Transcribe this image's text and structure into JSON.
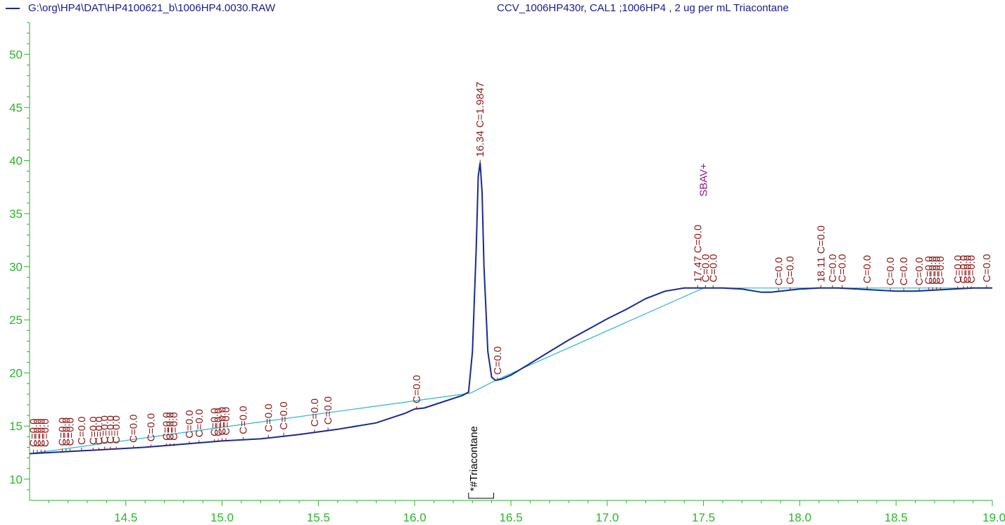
{
  "header": {
    "file_path": "G:\\org\\HP4\\DAT\\HP4100621_b\\1006HP4.0030.RAW",
    "sample": "CCV_1006HP430r, CAL1 ;1006HP4 , 2 ug per mL Triacontane"
  },
  "colors": {
    "axis_ticks": "#2bb52b",
    "trace": "#1a2a8c",
    "baseline": "#2bb5c8",
    "peak_label": "#8b1a1a",
    "sbav_label": "#8b1a8b",
    "compound_label": "#000000",
    "legend_line": "#1a2a8c"
  },
  "chart_data": {
    "type": "line",
    "title": "",
    "xlabel": "",
    "ylabel": "",
    "xlim": [
      14.0,
      19.0
    ],
    "ylim": [
      8,
      53
    ],
    "x_ticks": [
      14.5,
      15.0,
      15.5,
      16.0,
      16.5,
      17.0,
      17.5,
      18.0,
      18.5,
      19.0
    ],
    "x_tick_labels": [
      "14.5",
      "15.0",
      "15.5",
      "16.0",
      "16.5",
      "17.0",
      "17.5",
      "18.0",
      "18.5",
      "19.0"
    ],
    "y_ticks": [
      10,
      15,
      20,
      25,
      30,
      35,
      40,
      45,
      50
    ],
    "y_tick_labels": [
      "10",
      "15",
      "20",
      "25",
      "30",
      "35",
      "40",
      "45",
      "50"
    ],
    "series": [
      {
        "x": [
          14.0,
          14.2,
          14.4,
          14.6,
          14.8,
          15.0,
          15.2,
          15.4,
          15.6,
          15.8,
          15.95,
          16.0,
          16.05,
          16.15,
          16.25,
          16.28,
          16.3,
          16.32,
          16.33,
          16.34,
          16.35,
          16.36,
          16.38,
          16.4,
          16.42,
          16.45,
          16.5,
          16.6,
          16.7,
          16.8,
          16.9,
          17.0,
          17.1,
          17.2,
          17.3,
          17.4,
          17.5,
          17.6,
          17.7,
          17.8,
          17.85,
          17.9,
          18.0,
          18.1,
          18.2,
          18.3,
          18.4,
          18.5,
          18.6,
          18.7,
          18.8,
          18.9,
          19.0
        ],
        "values": [
          12.4,
          12.6,
          12.8,
          13.0,
          13.3,
          13.6,
          13.8,
          14.2,
          14.7,
          15.3,
          16.2,
          16.6,
          16.7,
          17.3,
          17.9,
          18.2,
          22.0,
          32.0,
          38.5,
          39.8,
          37.0,
          30.0,
          22.0,
          19.6,
          19.3,
          19.4,
          19.8,
          20.9,
          22.0,
          23.1,
          24.1,
          25.1,
          26.0,
          27.0,
          27.7,
          28.0,
          28.0,
          28.0,
          27.9,
          27.6,
          27.6,
          27.7,
          27.9,
          28.0,
          28.0,
          27.9,
          27.8,
          27.7,
          27.7,
          27.8,
          27.9,
          28.0,
          28.0
        ]
      },
      {
        "x": [
          14.0,
          16.29,
          16.42,
          17.5,
          19.0
        ],
        "values": [
          12.4,
          18.1,
          19.3,
          28.0,
          28.0
        ]
      }
    ],
    "peak_annotations": [
      {
        "x": 14.02,
        "y": 12.5,
        "text": "C=0.0"
      },
      {
        "x": 14.04,
        "y": 12.5,
        "text": "C=0.0"
      },
      {
        "x": 14.06,
        "y": 12.5,
        "text": "C=0.0"
      },
      {
        "x": 14.08,
        "y": 12.5,
        "text": "C=0.0"
      },
      {
        "x": 14.17,
        "y": 12.6,
        "text": "C=0.0"
      },
      {
        "x": 14.19,
        "y": 12.6,
        "text": "C=0.0"
      },
      {
        "x": 14.21,
        "y": 12.6,
        "text": "C=0.0"
      },
      {
        "x": 14.27,
        "y": 12.7,
        "text": "C=0.0"
      },
      {
        "x": 14.33,
        "y": 12.7,
        "text": "C=0.0"
      },
      {
        "x": 14.36,
        "y": 12.7,
        "text": "C=0.0"
      },
      {
        "x": 14.39,
        "y": 12.8,
        "text": "C=0.0"
      },
      {
        "x": 14.42,
        "y": 12.8,
        "text": "C=0.0"
      },
      {
        "x": 14.45,
        "y": 12.8,
        "text": "C=0.0"
      },
      {
        "x": 14.54,
        "y": 12.9,
        "text": "C=0.0"
      },
      {
        "x": 14.63,
        "y": 13.0,
        "text": "C=0.0"
      },
      {
        "x": 14.71,
        "y": 13.1,
        "text": "C=0.0"
      },
      {
        "x": 14.73,
        "y": 13.1,
        "text": "C=0.0"
      },
      {
        "x": 14.75,
        "y": 13.1,
        "text": "C=0.0"
      },
      {
        "x": 14.83,
        "y": 13.3,
        "text": "C=0.0"
      },
      {
        "x": 14.88,
        "y": 13.4,
        "text": "C=0.0"
      },
      {
        "x": 14.96,
        "y": 13.5,
        "text": "C=0.0"
      },
      {
        "x": 14.98,
        "y": 13.5,
        "text": "C=0.0"
      },
      {
        "x": 15.0,
        "y": 13.6,
        "text": "C=0.0"
      },
      {
        "x": 15.02,
        "y": 13.6,
        "text": "C=0.0"
      },
      {
        "x": 15.11,
        "y": 13.7,
        "text": "C=0.0"
      },
      {
        "x": 15.24,
        "y": 13.9,
        "text": "C=0.0"
      },
      {
        "x": 15.32,
        "y": 14.1,
        "text": "C=0.0"
      },
      {
        "x": 15.48,
        "y": 14.4,
        "text": "C=0.0"
      },
      {
        "x": 15.55,
        "y": 14.6,
        "text": "C=0.0"
      },
      {
        "x": 16.01,
        "y": 16.6,
        "text": "C=0.0"
      },
      {
        "x": 16.34,
        "y": 39.8,
        "text": "16.34  C=1.9847"
      },
      {
        "x": 16.43,
        "y": 19.3,
        "text": "C=0.0"
      },
      {
        "x": 17.47,
        "y": 28.0,
        "text": "17.47  C=0.0"
      },
      {
        "x": 17.51,
        "y": 28.0,
        "text": "C=0.0"
      },
      {
        "x": 17.55,
        "y": 28.0,
        "text": "C=0.0"
      },
      {
        "x": 17.89,
        "y": 27.7,
        "text": "C=0.0"
      },
      {
        "x": 17.95,
        "y": 27.8,
        "text": "C=0.0"
      },
      {
        "x": 18.11,
        "y": 28.0,
        "text": "18.11  C=0.0"
      },
      {
        "x": 18.17,
        "y": 28.0,
        "text": "C=0.0"
      },
      {
        "x": 18.22,
        "y": 28.0,
        "text": "C=0.0"
      },
      {
        "x": 18.35,
        "y": 27.9,
        "text": "C=0.0"
      },
      {
        "x": 18.47,
        "y": 27.7,
        "text": "C=0.0"
      },
      {
        "x": 18.54,
        "y": 27.7,
        "text": "C=0.0"
      },
      {
        "x": 18.62,
        "y": 27.7,
        "text": "C=0.0"
      },
      {
        "x": 18.67,
        "y": 27.8,
        "text": "C=0.0"
      },
      {
        "x": 18.69,
        "y": 27.8,
        "text": "C=0.0"
      },
      {
        "x": 18.71,
        "y": 27.8,
        "text": "C=0.0"
      },
      {
        "x": 18.73,
        "y": 27.8,
        "text": "C=0.0"
      },
      {
        "x": 18.82,
        "y": 27.9,
        "text": "C=0.0"
      },
      {
        "x": 18.85,
        "y": 27.9,
        "text": "C=0.0"
      },
      {
        "x": 18.87,
        "y": 27.9,
        "text": "C=0.0"
      },
      {
        "x": 18.89,
        "y": 27.9,
        "text": "C=0.0"
      },
      {
        "x": 18.97,
        "y": 28.0,
        "text": "C=0.0"
      }
    ],
    "sbav_marker": {
      "x": 17.5,
      "y": 28.0,
      "text": "SBAV+"
    },
    "compound_window": {
      "x_start": 16.28,
      "x_end": 16.41,
      "label": "*#Triacontane"
    }
  }
}
